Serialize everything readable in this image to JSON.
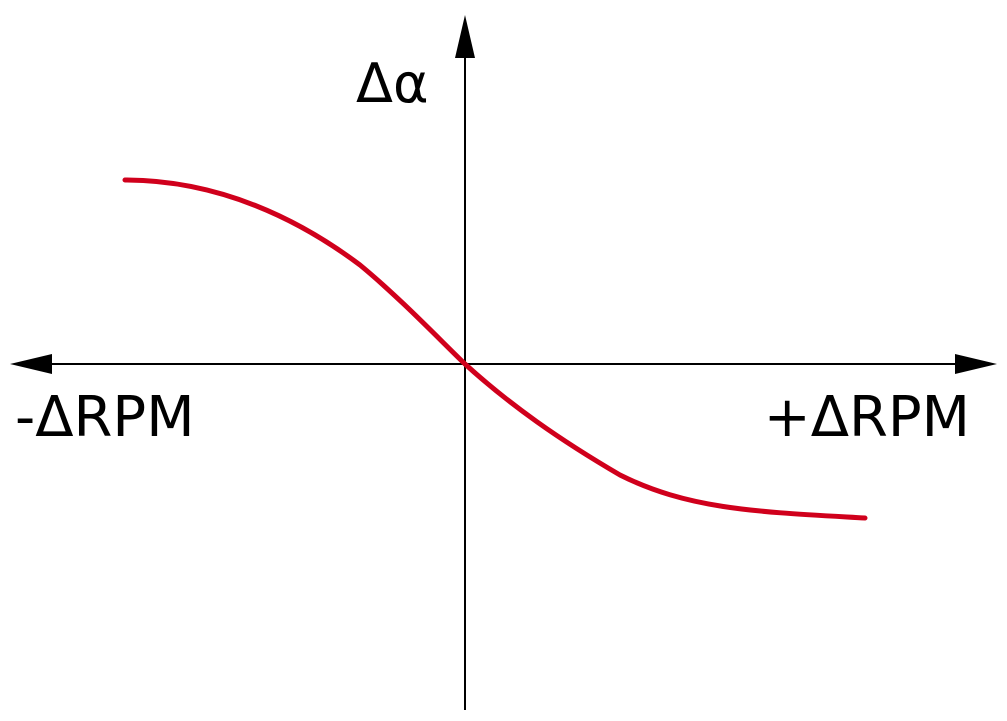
{
  "diagram": {
    "y_axis_label": "Δα",
    "x_axis_negative_label": "-ΔRPM",
    "x_axis_positive_label": "+ΔRPM",
    "curve_color": "#d0001c",
    "axis_color": "#000000"
  }
}
